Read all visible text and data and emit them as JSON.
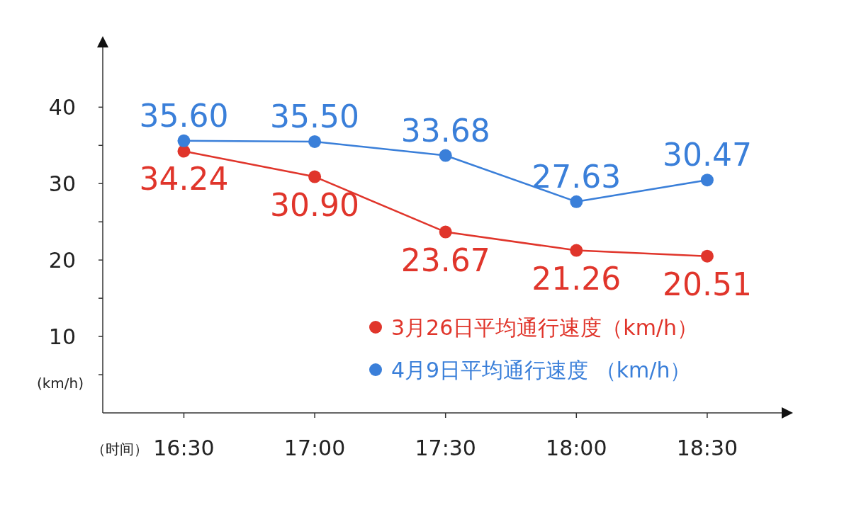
{
  "chart_data": {
    "type": "line",
    "xlabel": "（时间）",
    "ylabel": "(km/h)",
    "categories": [
      "16:30",
      "17:00",
      "17:30",
      "18:00",
      "18:30"
    ],
    "series": [
      {
        "name": "3月26日平均通行速度（km/h）",
        "color": "#e0352b",
        "values": [
          34.24,
          30.9,
          23.67,
          21.26,
          20.51
        ],
        "value_labels": [
          "34.24",
          "30.90",
          "23.67",
          "21.26",
          "20.51"
        ]
      },
      {
        "name": "4月9日平均通行速度 （km/h）",
        "color": "#3a7fd9",
        "values": [
          35.6,
          35.5,
          33.68,
          27.63,
          30.47
        ],
        "value_labels": [
          "35.60",
          "35.50",
          "33.68",
          "27.63",
          "30.47"
        ]
      }
    ],
    "ylim": [
      0,
      48
    ],
    "yticks": [
      {
        "value": 5,
        "label": null
      },
      10,
      {
        "value": 15,
        "label": null
      },
      20,
      {
        "value": 25,
        "label": null
      },
      30,
      {
        "value": 35,
        "label": null
      },
      40
    ],
    "grid": false,
    "legend": "bottom right",
    "marker": "circle",
    "line_style": "solid"
  }
}
